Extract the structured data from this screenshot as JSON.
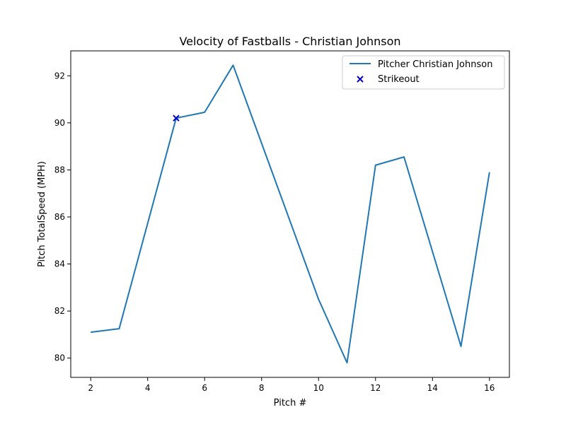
{
  "chart_data": {
    "type": "line",
    "title": "Velocity of Fastballs - Christian Johnson",
    "xlabel": "Pitch #",
    "ylabel": "Pitch TotalSpeed (MPH)",
    "xlim": [
      1.3,
      16.7
    ],
    "ylim": [
      79.18,
      93.06
    ],
    "x_ticks": [
      2,
      4,
      6,
      8,
      10,
      12,
      14,
      16
    ],
    "y_ticks": [
      80,
      82,
      84,
      86,
      88,
      90,
      92
    ],
    "grid": false,
    "legend_position": "top-right",
    "series": [
      {
        "name": "Pitcher Christian Johnson",
        "kind": "line",
        "color": "#1f77b4",
        "x": [
          2,
          3,
          5,
          6,
          7,
          10,
          11,
          12,
          13,
          15,
          16
        ],
        "y": [
          81.1,
          81.25,
          90.2,
          90.45,
          92.45,
          82.5,
          79.8,
          88.2,
          88.55,
          80.5,
          87.9
        ]
      },
      {
        "name": "Strikeout",
        "kind": "scatter",
        "marker": "x",
        "color": "#0000cc",
        "x": [
          5
        ],
        "y": [
          90.2
        ]
      }
    ]
  }
}
